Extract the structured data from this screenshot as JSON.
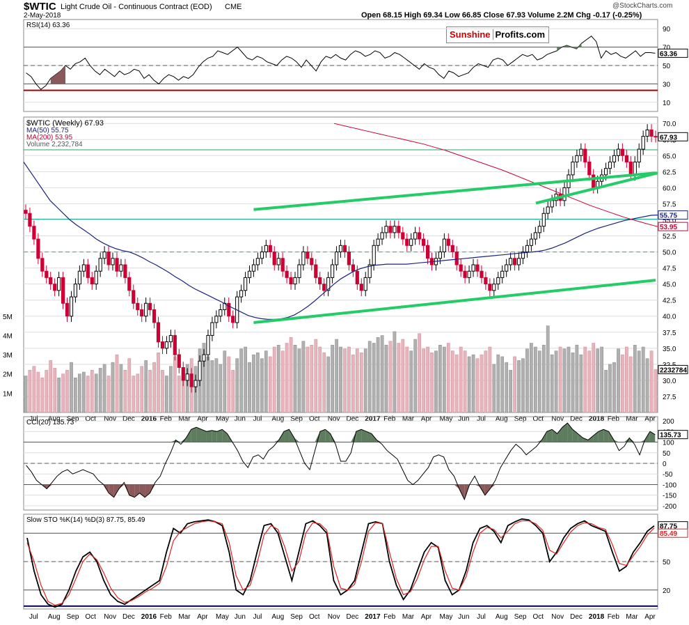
{
  "header": {
    "symbol": "$WTIC",
    "name": "Light Crude Oil - Continuous Contract (EOD)",
    "exchange": "CME",
    "date": "2-May-2018",
    "ohlc_text": "Open 68.15  High 69.34  Low 66.85  Close 67.93  Volume 2.2M  Chg -0.17 (-0.25%)",
    "watermark": "@StockCharts.com",
    "logo_red": "Sunshine",
    "logo_black": "Profits.com"
  },
  "colors": {
    "up": "#000000",
    "down": "#cc0033",
    "ma50": "#1a237e",
    "ma200": "#cc0033",
    "trend": "#22cc66",
    "vol_up": "#b0b0b0",
    "vol_down": "#e8b4bc",
    "fill_pos": "#5e7d5e",
    "fill_neg": "#8a5a5a",
    "hline_red": "#aa0000",
    "hline_blue": "#00008b"
  },
  "chart_data": [
    {
      "type": "line",
      "panel": "RSI",
      "title": "RSI(14) 63.36",
      "last_label": "63.36",
      "ticks": [
        90,
        70,
        50,
        30,
        10
      ],
      "ylim": [
        0,
        100
      ],
      "series": [
        {
          "values": [
            42,
            38,
            30,
            24,
            28,
            36,
            40,
            44,
            50,
            46,
            52,
            54,
            58,
            50,
            44,
            40,
            46,
            42,
            38,
            44,
            40,
            42,
            46,
            44,
            36,
            40,
            34,
            30,
            36,
            40,
            38,
            34,
            38,
            36,
            40,
            48,
            54,
            58,
            60,
            66,
            64,
            62,
            66,
            70,
            64,
            58,
            56,
            60,
            58,
            54,
            52,
            50,
            56,
            60,
            58,
            54,
            48,
            56,
            50,
            44,
            54,
            60,
            58,
            62,
            58,
            56,
            62,
            66,
            64,
            60,
            62,
            66,
            64,
            58,
            60,
            64,
            62,
            58,
            54,
            50,
            46,
            52,
            48,
            46,
            40,
            36,
            44,
            42,
            38,
            40,
            42,
            48,
            52,
            50,
            48,
            56,
            58,
            56,
            50,
            54,
            58,
            62,
            60,
            62,
            56,
            58,
            62,
            64,
            66,
            70,
            72,
            70,
            68,
            74,
            78,
            82,
            76,
            58,
            66,
            62,
            64,
            60,
            58,
            62,
            66,
            60,
            64,
            64,
            63.36
          ]
        }
      ],
      "shaded": [
        {
          "from": 5,
          "to": 8,
          "side": "below"
        },
        {
          "from": 108,
          "to": 113,
          "side": "above"
        }
      ],
      "red_level": 23
    },
    {
      "type": "candlestick",
      "panel": "price",
      "legend": [
        "$WTIC (Weekly) 67.93",
        "MA(50) 55.75",
        "MA(200) 53.95",
        "Volume 2,232,784"
      ],
      "ylim": [
        25,
        71
      ],
      "ticks": [
        70.0,
        67.5,
        65.0,
        62.5,
        60.0,
        57.5,
        55.0,
        52.5,
        50.0,
        47.5,
        45.0,
        42.5,
        40.0,
        37.5,
        35.0,
        32.5,
        30.0,
        27.5
      ],
      "last_labels": {
        "close": "67.93",
        "ma50": "55.75",
        "ma200": "53.95"
      },
      "closes": [
        56,
        54,
        52,
        49,
        47,
        46,
        45,
        44,
        46,
        42,
        40,
        43,
        45,
        47,
        48,
        46,
        45,
        47,
        49,
        50,
        48,
        49,
        47,
        48,
        46,
        44,
        42,
        41,
        40,
        42,
        41,
        39,
        36,
        35,
        36,
        37,
        34,
        32,
        30,
        31,
        29,
        30,
        33,
        34,
        37,
        39,
        40,
        41,
        42,
        40,
        39,
        43,
        44,
        46,
        47,
        48,
        49,
        50,
        51,
        50,
        48,
        49,
        47,
        46,
        45,
        46,
        48,
        50,
        49,
        48,
        46,
        45,
        44,
        46,
        48,
        50,
        51,
        50,
        48,
        47,
        45,
        44,
        46,
        48,
        51,
        52,
        53,
        54,
        53,
        54,
        53,
        52,
        51,
        52,
        53,
        52,
        51,
        49,
        48,
        49,
        50,
        52,
        51,
        50,
        48,
        47,
        46,
        47,
        48,
        47,
        46,
        45,
        44,
        45,
        46,
        47,
        48,
        49,
        48,
        49,
        50,
        51,
        52,
        53,
        54,
        56,
        57,
        58,
        59,
        58,
        60,
        62,
        64,
        65,
        66,
        64,
        62,
        60,
        61,
        62,
        63,
        64,
        65,
        66,
        65,
        64,
        62,
        64,
        66,
        68,
        69,
        68,
        67.93
      ],
      "ma50": [
        64,
        62.5,
        61,
        59.5,
        58,
        57,
        56,
        55,
        54.2,
        53.5,
        52.8,
        52,
        51.4,
        50.9,
        50.5,
        50.2,
        50,
        49.6,
        49.1,
        48.5,
        48,
        47.4,
        46.8,
        46.1,
        45.5,
        44.8,
        44.2,
        43.7,
        43.2,
        42.7,
        42.2,
        41.6,
        41.1,
        40.6,
        40.1,
        39.8,
        39.6,
        39.5,
        39.5,
        39.6,
        39.8,
        40.2,
        40.8,
        41.5,
        42.3,
        43.2,
        44.1,
        45,
        45.8,
        46.4,
        47,
        47.4,
        47.7,
        47.9,
        48,
        48.1,
        48.1,
        48.1,
        48.1,
        48.2,
        48.3,
        48.4,
        48.5,
        48.6,
        48.7,
        48.8,
        48.9,
        49,
        49.1,
        49.2,
        49.3,
        49.4,
        49.5,
        49.6,
        49.7,
        49.8,
        49.9,
        50,
        50.1,
        50.3,
        50.6,
        51,
        51.4,
        51.9,
        52.4,
        52.9,
        53.3,
        53.7,
        54,
        54.3,
        54.6,
        54.9,
        55.1,
        55.3,
        55.5,
        55.7,
        55.75
      ],
      "ma200": [
        70,
        69.6,
        69.2,
        68.8,
        68.4,
        68,
        67.6,
        67.2,
        66.8,
        66.3,
        65.8,
        65.2,
        64.6,
        64,
        63.4,
        62.8,
        62.1,
        61.4,
        60.7,
        60,
        59.3,
        58.6,
        57.9,
        57.2,
        56.6,
        56,
        55.4,
        54.9,
        54.4,
        53.95
      ],
      "trendlines": [
        {
          "from": [
            55,
            56.6
          ],
          "to": [
            152,
            62.3
          ]
        },
        {
          "from": [
            55,
            39
          ],
          "to": [
            152,
            45.6
          ]
        },
        {
          "from": [
            0,
            0
          ],
          "to": [
            0,
            0
          ]
        }
      ]
    },
    {
      "type": "bar",
      "panel": "volume",
      "ticks": [
        "5M",
        "4M",
        "3M",
        "2M",
        "1M"
      ],
      "ylim": [
        0,
        5.5
      ],
      "last_label": "2232784",
      "values": [
        1.9,
        2.2,
        2.4,
        2.1,
        1.8,
        2.2,
        2.7,
        2.3,
        1.8,
        2.0,
        2.2,
        2.6,
        1.8,
        2.0,
        2.1,
        1.9,
        2.2,
        2.0,
        2.3,
        2.5,
        1.9,
        2.6,
        3.0,
        2.5,
        2.2,
        2.8,
        1.9,
        2.0,
        2.4,
        2.7,
        2.2,
        2.6,
        3.1,
        2.2,
        1.9,
        2.4,
        2.9,
        1.9,
        2.3,
        2.5,
        2.8,
        2.4,
        3.3,
        3.6,
        2.9,
        2.7,
        2.8,
        2.5,
        3.2,
        2.9,
        2.2,
        2.8,
        3.3,
        3.4,
        2.6,
        3.0,
        3.1,
        2.8,
        3.2,
        2.9,
        3.4,
        3.5,
        3.2,
        3.6,
        3.9,
        3.5,
        3.3,
        3.7,
        3.4,
        3.5,
        3.8,
        3.4,
        3.1,
        2.9,
        3.5,
        3.8,
        3.4,
        3.3,
        3.4,
        3.0,
        3.3,
        3.1,
        3.3,
        3.7,
        3.6,
        3.9,
        4.0,
        3.5,
        3.7,
        4.2,
        3.6,
        3.8,
        3.4,
        3.2,
        3.8,
        4.1,
        3.3,
        3.4,
        3.1,
        3.2,
        3.5,
        3.4,
        3.6,
        3.2,
        3.0,
        3.4,
        3.2,
        2.9,
        3.0,
        2.8,
        3.0,
        3.2,
        3.4,
        2.5,
        3.0,
        2.9,
        2.6,
        2.2,
        2.9,
        2.7,
        2.8,
        3.3,
        3.6,
        3.4,
        3.2,
        3.5,
        4.5,
        3.0,
        3.2,
        3.4,
        3.3,
        3.4,
        3.1,
        3.5,
        3.0,
        3.4,
        3.2,
        3.6,
        3.3,
        3.4,
        2.2,
        2.5,
        2.6,
        3.3,
        3.0,
        3.4,
        2.9,
        3.5,
        3.2,
        3.4,
        2.8,
        3.2,
        2.23
      ]
    },
    {
      "type": "line",
      "panel": "CCI",
      "title": "CCI(20) 135.73",
      "last_label": "135.73",
      "ticks": [
        200,
        150,
        100,
        50,
        0,
        -50,
        -100,
        -150,
        -200
      ],
      "ylim": [
        -220,
        220
      ],
      "series": [
        {
          "values": [
            -10,
            -40,
            -80,
            -100,
            -120,
            -90,
            -60,
            -40,
            -30,
            -50,
            -40,
            -30,
            -40,
            -50,
            -80,
            -100,
            -140,
            -160,
            -120,
            -90,
            -150,
            -160,
            -140,
            -160,
            -140,
            -90,
            -60,
            0,
            50,
            110,
            90,
            120,
            160,
            170,
            160,
            150,
            155,
            150,
            160,
            140,
            100,
            60,
            10,
            -20,
            30,
            40,
            20,
            60,
            80,
            110,
            150,
            160,
            120,
            60,
            0,
            -30,
            60,
            150,
            160,
            140,
            90,
            10,
            10,
            50,
            150,
            160,
            150,
            140,
            110,
            90,
            60,
            40,
            20,
            -30,
            -80,
            -100,
            -80,
            -50,
            -20,
            30,
            40,
            30,
            -30,
            -60,
            -120,
            -170,
            -100,
            -60,
            -110,
            -150,
            -120,
            -80,
            -20,
            20,
            60,
            90,
            70,
            40,
            60,
            80,
            110,
            150,
            160,
            140,
            170,
            190,
            160,
            140,
            120,
            110,
            130,
            150,
            160,
            150,
            110,
            60,
            80,
            120,
            90,
            40,
            110,
            150,
            135.73
          ]
        }
      ]
    },
    {
      "type": "line",
      "panel": "Slow STO",
      "title": "Slow STO %K(14) %D(3) 87.75, 85.49",
      "last_labels": [
        "87.75",
        "85.49"
      ],
      "ticks": [
        80,
        50,
        20
      ],
      "ylim": [
        0,
        100
      ],
      "series": [
        {
          "name": "%K",
          "values": [
            75,
            40,
            15,
            5,
            2,
            5,
            20,
            40,
            55,
            60,
            50,
            30,
            15,
            8,
            5,
            10,
            15,
            20,
            25,
            30,
            60,
            85,
            80,
            90,
            92,
            93,
            94,
            92,
            88,
            60,
            20,
            15,
            30,
            60,
            88,
            90,
            80,
            55,
            30,
            60,
            90,
            93,
            88,
            80,
            30,
            15,
            20,
            30,
            60,
            90,
            92,
            90,
            50,
            25,
            10,
            20,
            40,
            60,
            70,
            65,
            30,
            15,
            20,
            40,
            70,
            85,
            88,
            82,
            70,
            88,
            92,
            95,
            94,
            88,
            80,
            50,
            60,
            75,
            85,
            90,
            93,
            88,
            85,
            82,
            60,
            40,
            45,
            60,
            70,
            82,
            87.75
          ]
        },
        {
          "name": "%D",
          "values": [
            70,
            50,
            25,
            8,
            4,
            6,
            15,
            32,
            50,
            58,
            52,
            38,
            22,
            12,
            7,
            9,
            13,
            18,
            22,
            27,
            45,
            72,
            82,
            86,
            90,
            92,
            93,
            92,
            90,
            70,
            35,
            20,
            25,
            48,
            78,
            88,
            84,
            65,
            40,
            50,
            80,
            91,
            90,
            83,
            45,
            22,
            20,
            26,
            50,
            82,
            91,
            90,
            60,
            32,
            15,
            18,
            32,
            52,
            66,
            66,
            40,
            22,
            20,
            34,
            60,
            80,
            86,
            84,
            75,
            82,
            90,
            93,
            93,
            90,
            83,
            62,
            58,
            70,
            81,
            88,
            91,
            90,
            86,
            84,
            68,
            48,
            46,
            56,
            66,
            78,
            85.49
          ]
        }
      ],
      "blue_level": 0
    }
  ],
  "xaxis": {
    "labels": [
      "Jul",
      "Aug",
      "Sep",
      "Oct",
      "Nov",
      "Dec",
      "2016",
      "Feb",
      "Mar",
      "Apr",
      "May",
      "Jun",
      "Jul",
      "Aug",
      "Sep",
      "Oct",
      "Nov",
      "Dec",
      "2017",
      "Feb",
      "Mar",
      "Apr",
      "May",
      "Jun",
      "Jul",
      "Aug",
      "Sep",
      "Oct",
      "Nov",
      "Dec",
      "2018",
      "Feb",
      "Mar",
      "Apr"
    ]
  }
}
